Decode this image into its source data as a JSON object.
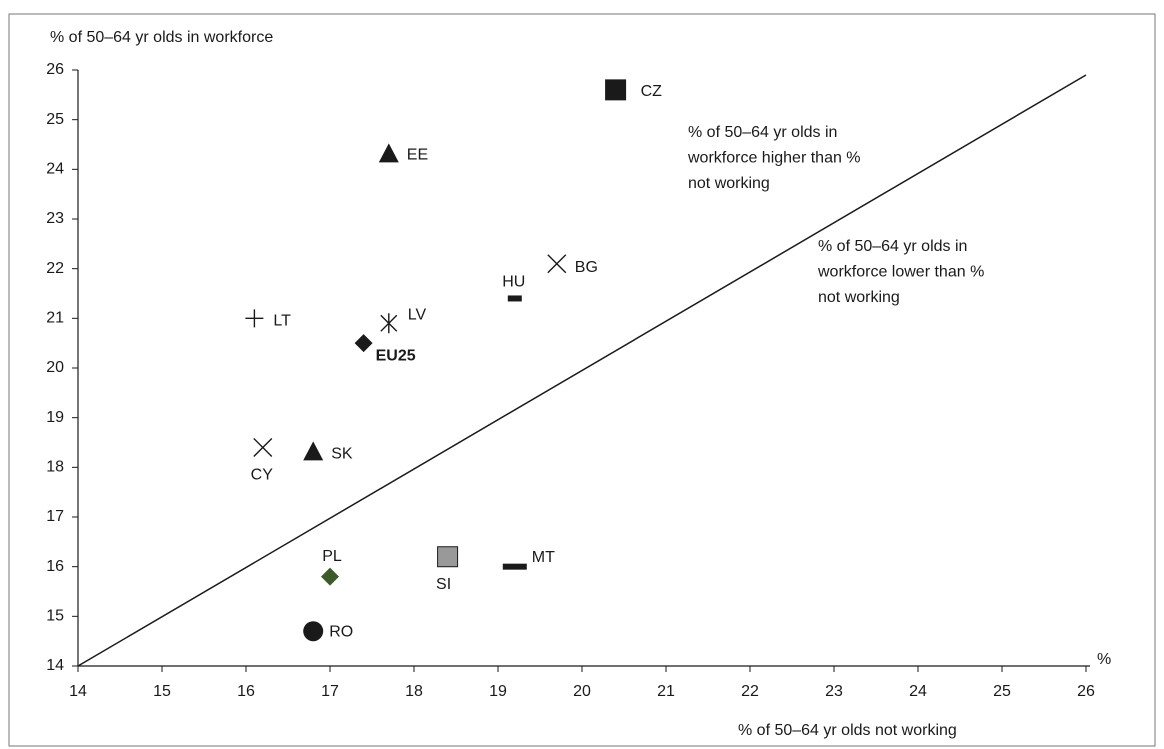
{
  "chart_data": {
    "type": "scatter",
    "y_label": "% of 50–64 yr olds in workforce",
    "x_label": "% of 50–64 yr olds not working",
    "x_unit": "%",
    "xlim": [
      14,
      26
    ],
    "ylim": [
      14,
      26
    ],
    "xticks": [
      14,
      15,
      16,
      17,
      18,
      19,
      20,
      21,
      22,
      23,
      24,
      25,
      26
    ],
    "yticks": [
      14,
      15,
      16,
      17,
      18,
      19,
      20,
      21,
      22,
      23,
      24,
      25,
      26
    ],
    "annotations": [
      {
        "lines": [
          "% of 50–64 yr olds in",
          "workforce higher than %",
          "not working"
        ]
      },
      {
        "lines": [
          "% of 50–64 yr olds in",
          "workforce lower than %",
          "not working"
        ]
      }
    ],
    "points": [
      {
        "label": "CZ",
        "x": 20.4,
        "y": 25.6,
        "marker": "square",
        "color": "#1a1a1a"
      },
      {
        "label": "EE",
        "x": 17.7,
        "y": 24.3,
        "marker": "triangle",
        "color": "#1a1a1a"
      },
      {
        "label": "BG",
        "x": 19.7,
        "y": 22.1,
        "marker": "x",
        "color": "#1a1a1a"
      },
      {
        "label": "HU",
        "x": 19.2,
        "y": 21.4,
        "marker": "dash",
        "color": "#1a1a1a"
      },
      {
        "label": "LT",
        "x": 16.1,
        "y": 21.0,
        "marker": "plus",
        "color": "#1a1a1a"
      },
      {
        "label": "LV",
        "x": 17.7,
        "y": 20.9,
        "marker": "asterisk",
        "color": "#1a1a1a"
      },
      {
        "label": "EU25",
        "x": 17.4,
        "y": 20.5,
        "marker": "diamond",
        "color": "#1a1a1a",
        "label_bold": true
      },
      {
        "label": "CY",
        "x": 16.2,
        "y": 18.4,
        "marker": "x",
        "color": "#1a1a1a"
      },
      {
        "label": "SK",
        "x": 16.8,
        "y": 18.3,
        "marker": "triangle",
        "color": "#1a1a1a"
      },
      {
        "label": "PL",
        "x": 17.0,
        "y": 15.8,
        "marker": "diamond",
        "color": "#3d5a2a"
      },
      {
        "label": "SI",
        "x": 18.4,
        "y": 16.2,
        "marker": "square",
        "color": "#999999"
      },
      {
        "label": "MT",
        "x": 19.2,
        "y": 16.0,
        "marker": "dash",
        "color": "#1a1a1a"
      },
      {
        "label": "RO",
        "x": 16.8,
        "y": 14.7,
        "marker": "circle",
        "color": "#1a1a1a"
      }
    ]
  }
}
